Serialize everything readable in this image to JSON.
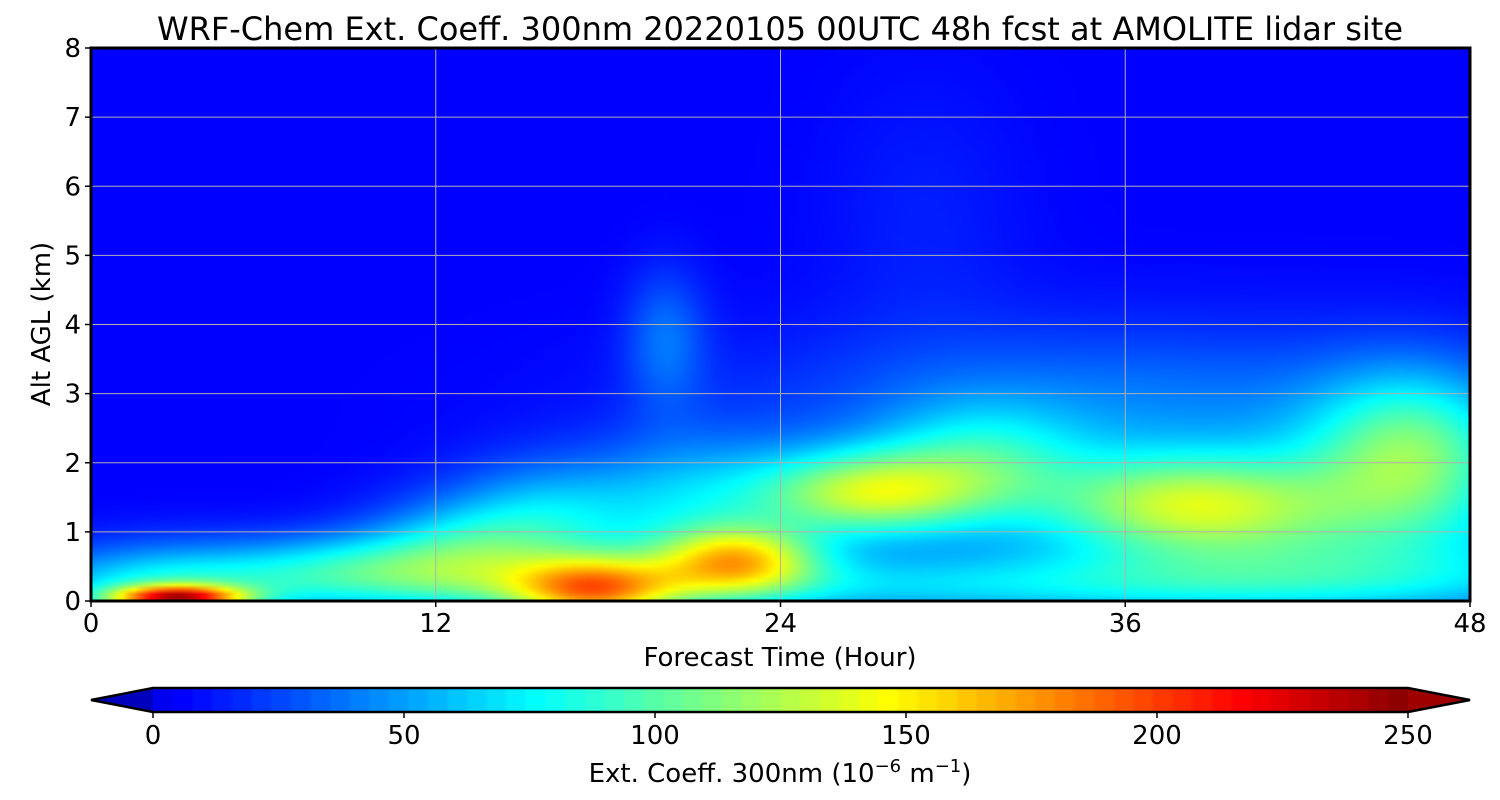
{
  "chart_data": {
    "type": "heatmap",
    "title": "WRF-Chem Ext. Coeff. 300nm  20220105 00UTC 48h fcst at AMOLITE lidar site",
    "xlabel": "Forecast Time (Hour)",
    "ylabel": "Alt AGL (km)",
    "xlim": [
      0,
      48
    ],
    "ylim": [
      0,
      8
    ],
    "xticks": [
      0,
      12,
      24,
      36,
      48
    ],
    "yticks": [
      0,
      1,
      2,
      3,
      4,
      5,
      6,
      7,
      8
    ],
    "grid": true,
    "colormap": "jet",
    "colorbar": {
      "label_prefix": "Ext. Coeff. 300nm  (10",
      "label_exp1": "−6",
      "label_mid": " m",
      "label_exp2": "−1",
      "label_suffix": ")",
      "range": [
        0,
        250
      ],
      "ticks": [
        0,
        50,
        100,
        150,
        200,
        250
      ],
      "extend": "both",
      "orientation": "horizontal"
    },
    "features": [
      {
        "t": 3,
        "z": 0.05,
        "st": 1.6,
        "sz": 0.12,
        "v": 165
      },
      {
        "t": 2.5,
        "z": 0.2,
        "st": 3.0,
        "sz": 0.45,
        "v": 55
      },
      {
        "t": 9,
        "z": 0.5,
        "st": 3.0,
        "sz": 0.35,
        "v": 50
      },
      {
        "t": 13,
        "z": 0.7,
        "st": 2.5,
        "sz": 0.5,
        "v": 60
      },
      {
        "t": 17.5,
        "z": 0.15,
        "st": 2.0,
        "sz": 0.35,
        "v": 120
      },
      {
        "t": 16,
        "z": 1.2,
        "st": 2.5,
        "sz": 0.6,
        "v": 50
      },
      {
        "t": 22.5,
        "z": 0.6,
        "st": 2.0,
        "sz": 0.35,
        "v": 115
      },
      {
        "t": 21,
        "z": 1.4,
        "st": 2.5,
        "sz": 0.7,
        "v": 45
      },
      {
        "t": 27,
        "z": 1.55,
        "st": 2.8,
        "sz": 0.45,
        "v": 110
      },
      {
        "t": 31,
        "z": 2.0,
        "st": 2.5,
        "sz": 0.6,
        "v": 50
      },
      {
        "t": 38,
        "z": 1.4,
        "st": 3.5,
        "sz": 0.5,
        "v": 85
      },
      {
        "t": 46,
        "z": 2.2,
        "st": 2.5,
        "sz": 0.8,
        "v": 80
      },
      {
        "t": 43,
        "z": 1.2,
        "st": 6.0,
        "sz": 0.7,
        "v": 45
      },
      {
        "t": 36,
        "z": 2.7,
        "st": 9.0,
        "sz": 0.9,
        "v": 35
      },
      {
        "t": 20,
        "z": 3.8,
        "st": 1.0,
        "sz": 0.7,
        "v": 30
      },
      {
        "t": 22,
        "z": 0.15,
        "st": 16.0,
        "sz": 0.3,
        "v": 30
      },
      {
        "t": 30,
        "z": 0.3,
        "st": 20.0,
        "sz": 0.35,
        "v": 25
      },
      {
        "t": 42,
        "z": 0.4,
        "st": 8.0,
        "sz": 0.5,
        "v": 30
      },
      {
        "t": 29,
        "z": 5.5,
        "st": 2.5,
        "sz": 1.5,
        "v": 8
      }
    ],
    "background_value": 4
  }
}
